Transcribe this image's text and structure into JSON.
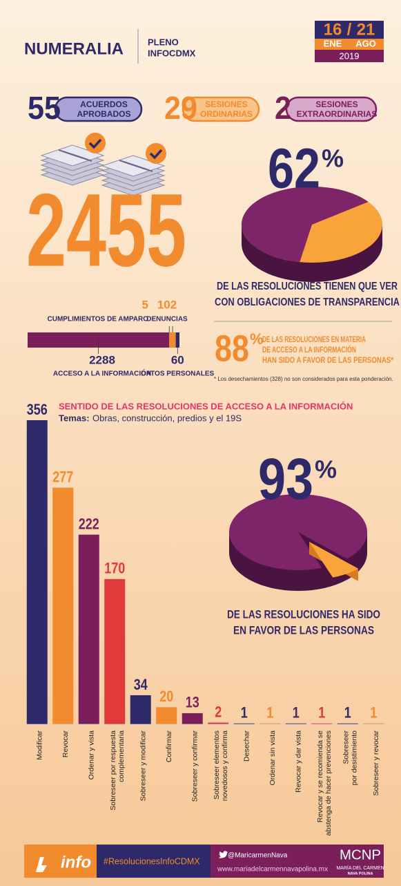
{
  "header": {
    "title": "NUMERALIA",
    "subtitle": [
      "PLENO",
      "INFOCDMX"
    ],
    "date": {
      "start_day": "16",
      "separator": "/",
      "end_day": "21",
      "start_month": "ENE",
      "end_month": "AGO",
      "year": "2019"
    }
  },
  "summary": [
    {
      "value": 55,
      "label": [
        "ACUERDOS",
        "APROBADOS"
      ],
      "color": "#2e2a6a",
      "fill": "#a9a3d8"
    },
    {
      "value": 29,
      "label": [
        "SESIONES",
        "ORDINARIAS"
      ],
      "color": "#f28a2e",
      "fill": "#f9c48a"
    },
    {
      "value": 2,
      "label": [
        "SESIONES",
        "EXTRAORDINARIAS"
      ],
      "color": "#7b1f5a",
      "fill": "#d9a9cb"
    }
  ],
  "total": {
    "value": 2455,
    "segments": [
      {
        "name": "ACCESO A LA INFORMACIÓN",
        "value": 2288,
        "color": "#7b1f5a"
      },
      {
        "name": "CUMPLIMIENTOS DE AMPARO",
        "value": 5,
        "color": "#f28a2e"
      },
      {
        "name": "DENUNCIAS",
        "value": 102,
        "color": "#f28a2e"
      },
      {
        "name": "DATOS PERSONALES",
        "value": 60,
        "color": "#2e2a6a"
      }
    ]
  },
  "transparency": {
    "value": 62,
    "unit": "%",
    "text": [
      "DE LAS RESOLUCIONES TIENEN QUE VER",
      "CON OBLIGACIONES DE TRANSPARENCIA"
    ]
  },
  "favor": {
    "value": 88,
    "unit": "%",
    "text": [
      "DE LAS RESOLUCIONES EN MATERIA",
      "DE ACCESO A LA INFORMACIÓN",
      "HAN SIDO A FAVOR DE LAS PERSONAS*"
    ],
    "footnote": "* Los desechamientos (328) no son considerados para esta ponderación."
  },
  "chart_data": {
    "type": "bar",
    "title": "SENTIDO DE LAS RESOLUCIONES DE ACCESO A LA INFORMACIÓN",
    "subtitle_label": "Temas:",
    "subtitle": "Obras, construcción, predios y el 19S",
    "categories": [
      [
        "Modificar"
      ],
      [
        "Revocar"
      ],
      [
        "Ordenar y vista"
      ],
      [
        "Sobreseer por respuesta",
        "complementaria"
      ],
      [
        "Sobreseer y modificar"
      ],
      [
        "Confirmar"
      ],
      [
        "Sobreseer y confirmar"
      ],
      [
        "Sobreseer elementos",
        "novedosos y confirma"
      ],
      [
        "Desechar"
      ],
      [
        "Ordenar sin vista"
      ],
      [
        "Revocar y dar vista"
      ],
      [
        "Revocar y se recomienda se",
        "abstenga de hacer prevenciones"
      ],
      [
        "Sobreseer",
        "por desistimiento"
      ],
      [
        "Sobreseer y revocar"
      ]
    ],
    "values": [
      356,
      277,
      222,
      170,
      34,
      20,
      13,
      2,
      1,
      1,
      1,
      1,
      1,
      1
    ],
    "colors": [
      "#2e2a6a",
      "#f28a2e",
      "#7b1f5a",
      "#e03a3a",
      "#2e2a6a",
      "#f28a2e",
      "#7b1f5a",
      "#e03a3a",
      "#2e2a6a",
      "#f28a2e",
      "#4a2a6a",
      "#e03a3a",
      "#2e2a6a",
      "#f28a2e"
    ]
  },
  "favor_access": {
    "value": 93,
    "unit": "%",
    "text": [
      "DE LAS RESOLUCIONES HA SIDO",
      "EN FAVOR DE LAS PERSONAS"
    ]
  },
  "footer": {
    "brand": "info",
    "hashtag": "#ResolucionesInfoCDMX",
    "twitter": "@MaricarmenNava",
    "website": "www.mariadelcarmennavapolina.mx",
    "logo": "MCNP",
    "name": [
      "MARÍA DEL CARMEN",
      "NAVA POLINA"
    ]
  }
}
